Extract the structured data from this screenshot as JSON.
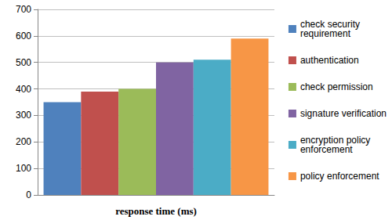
{
  "chart_data": {
    "type": "bar",
    "x_label": "response time (ms)",
    "categories": [
      null
    ],
    "series": [
      {
        "name": "check security requirement",
        "color": "#4f81bd",
        "values": [
          350
        ]
      },
      {
        "name": "authentication",
        "color": "#c0504d",
        "values": [
          390
        ]
      },
      {
        "name": "check permission",
        "color": "#9bbb59",
        "values": [
          400
        ]
      },
      {
        "name": "signature verification",
        "color": "#8064a2",
        "values": [
          500
        ]
      },
      {
        "name": "encryption policy enforcement",
        "color": "#4bacc6",
        "values": [
          510
        ]
      },
      {
        "name": "policy enforcement",
        "color": "#f79646",
        "values": [
          590
        ]
      }
    ],
    "ylim": [
      0,
      700
    ],
    "yticks": [
      0,
      100,
      200,
      300,
      400,
      500,
      600,
      700
    ],
    "grid": true,
    "legend": "right"
  }
}
